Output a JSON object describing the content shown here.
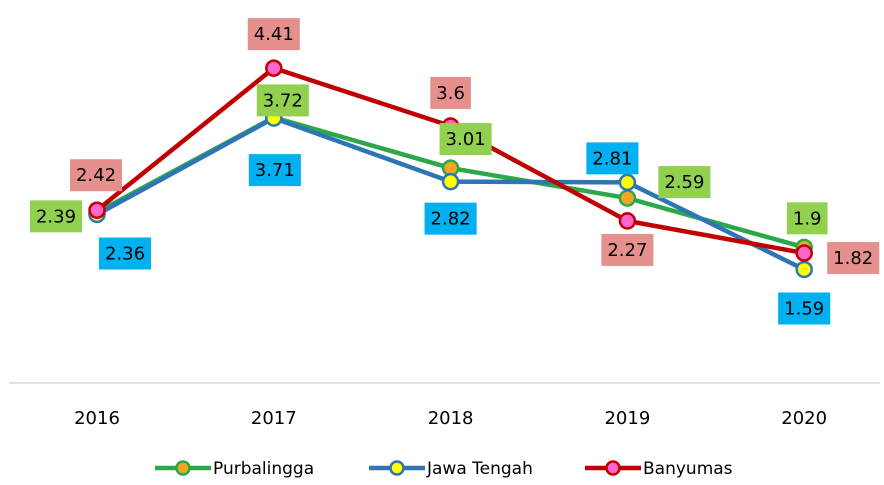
{
  "chart_data": {
    "type": "line",
    "categories": [
      "2016",
      "2017",
      "2018",
      "2019",
      "2020"
    ],
    "series": [
      {
        "name": "Purbalingga",
        "color": "#2ca84a",
        "marker_color": "#f4a623",
        "values": [
          2.39,
          3.72,
          3.01,
          2.59,
          1.9
        ],
        "label_color": "#92d050"
      },
      {
        "name": "Jawa Tengah",
        "color": "#2e75b6",
        "marker_color": "#ffff00",
        "values": [
          2.36,
          3.71,
          2.82,
          2.81,
          1.59
        ],
        "label_color": "#00b0f0"
      },
      {
        "name": "Banyumas",
        "color": "#c00000",
        "marker_color": "#ff66cc",
        "values": [
          2.42,
          4.41,
          3.6,
          2.27,
          1.82
        ],
        "label_color": "#e6908e"
      }
    ],
    "ylim": [
      0,
      5
    ],
    "grid": false,
    "legend": "bottom"
  }
}
